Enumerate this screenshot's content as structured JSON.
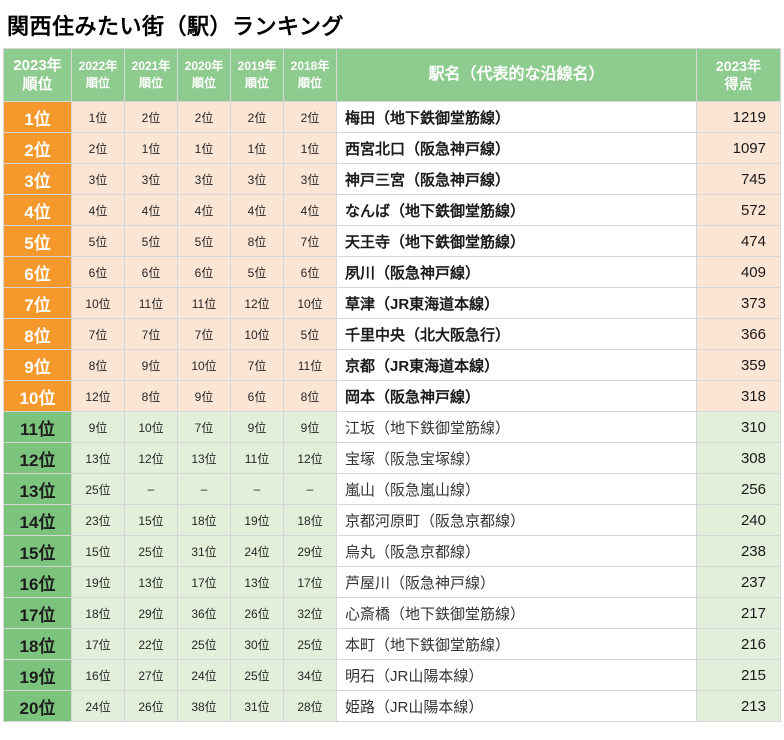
{
  "title": "関西住みたい街（駅）ランキング",
  "colors": {
    "header_green": "#8dcb8e",
    "rank_orange": "#f5992d",
    "cell_peach": "#fbe5d4",
    "rank_green": "#7cc47d",
    "cell_light_green": "#e2efda"
  },
  "chart_data": {
    "type": "table",
    "title": "関西住みたい街（駅）ランキング",
    "columns": [
      "2023年\n順位",
      "2022年\n順位",
      "2021年\n順位",
      "2020年\n順位",
      "2019年\n順位",
      "2018年\n順位",
      "駅名（代表的な沿線名）",
      "2023年\n得点"
    ],
    "rows": [
      [
        "1位",
        "1位",
        "2位",
        "2位",
        "2位",
        "2位",
        "梅田（地下鉄御堂筋線）",
        1219
      ],
      [
        "2位",
        "2位",
        "1位",
        "1位",
        "1位",
        "1位",
        "西宮北口（阪急神戸線）",
        1097
      ],
      [
        "3位",
        "3位",
        "3位",
        "3位",
        "3位",
        "3位",
        "神戸三宮（阪急神戸線）",
        745
      ],
      [
        "4位",
        "4位",
        "4位",
        "4位",
        "4位",
        "4位",
        "なんば（地下鉄御堂筋線）",
        572
      ],
      [
        "5位",
        "5位",
        "5位",
        "5位",
        "8位",
        "7位",
        "天王寺（地下鉄御堂筋線）",
        474
      ],
      [
        "6位",
        "6位",
        "6位",
        "6位",
        "5位",
        "6位",
        "夙川（阪急神戸線）",
        409
      ],
      [
        "7位",
        "10位",
        "11位",
        "11位",
        "12位",
        "10位",
        "草津（JR東海道本線）",
        373
      ],
      [
        "8位",
        "7位",
        "7位",
        "7位",
        "10位",
        "5位",
        "千里中央（北大阪急行）",
        366
      ],
      [
        "9位",
        "8位",
        "9位",
        "10位",
        "7位",
        "11位",
        "京都（JR東海道本線）",
        359
      ],
      [
        "10位",
        "12位",
        "8位",
        "9位",
        "6位",
        "8位",
        "岡本（阪急神戸線）",
        318
      ],
      [
        "11位",
        "9位",
        "10位",
        "7位",
        "9位",
        "9位",
        "江坂（地下鉄御堂筋線）",
        310
      ],
      [
        "12位",
        "13位",
        "12位",
        "13位",
        "11位",
        "12位",
        "宝塚（阪急宝塚線）",
        308
      ],
      [
        "13位",
        "25位",
        "–",
        "–",
        "–",
        "–",
        "嵐山（阪急嵐山線）",
        256
      ],
      [
        "14位",
        "23位",
        "15位",
        "18位",
        "19位",
        "18位",
        "京都河原町（阪急京都線）",
        240
      ],
      [
        "15位",
        "15位",
        "25位",
        "31位",
        "24位",
        "29位",
        "烏丸（阪急京都線）",
        238
      ],
      [
        "16位",
        "19位",
        "13位",
        "17位",
        "13位",
        "17位",
        "芦屋川（阪急神戸線）",
        237
      ],
      [
        "17位",
        "18位",
        "29位",
        "36位",
        "26位",
        "32位",
        "心斎橋（地下鉄御堂筋線）",
        217
      ],
      [
        "18位",
        "17位",
        "22位",
        "25位",
        "30位",
        "25位",
        "本町（地下鉄御堂筋線）",
        216
      ],
      [
        "19位",
        "16位",
        "27位",
        "24位",
        "25位",
        "34位",
        "明石（JR山陽本線）",
        215
      ],
      [
        "20位",
        "24位",
        "26位",
        "38位",
        "31位",
        "28位",
        "姫路（JR山陽本線）",
        213
      ]
    ]
  }
}
